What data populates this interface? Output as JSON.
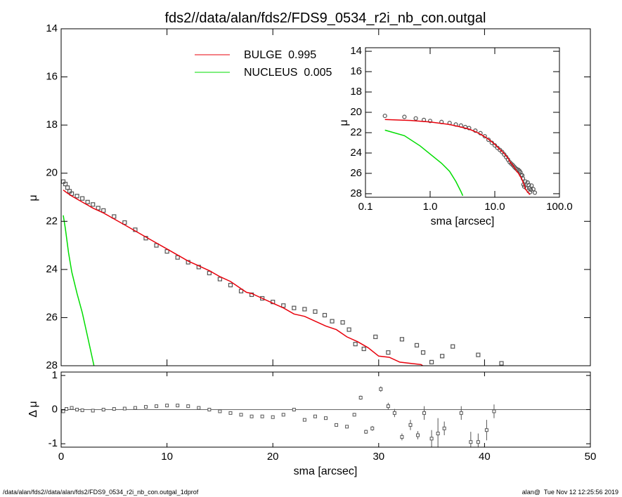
{
  "chart_data": [
    {
      "type": "scatter",
      "title": "fds2//data/alan/fds2/FDS9_0534_r2i_nb_con.outgal",
      "ylabel": "μ",
      "xlim": [
        0,
        50
      ],
      "ylim": [
        28,
        14
      ],
      "xticks": [
        0,
        10,
        20,
        30,
        40,
        50
      ],
      "yticks": [
        14,
        16,
        18,
        20,
        22,
        24,
        26,
        28
      ],
      "legend": "upper center",
      "series": [
        {
          "style": "markers",
          "color": "#555555",
          "x": [
            0.2,
            0.4,
            0.6,
            0.8,
            1.0,
            1.5,
            2,
            2.5,
            3,
            3.5,
            4,
            5,
            6,
            7,
            8,
            9,
            10,
            11,
            12,
            13,
            14,
            15,
            16,
            17,
            18,
            19,
            20,
            21,
            22,
            23,
            24,
            24.9,
            25.6,
            26.6,
            27.2,
            27.8,
            28.6,
            29.7,
            30.9,
            32.2,
            33.6,
            34.2,
            35.0,
            36.0,
            37.0,
            39.4,
            41.6
          ],
          "values": [
            20.35,
            20.45,
            20.6,
            20.75,
            20.85,
            20.95,
            21.05,
            21.2,
            21.3,
            21.45,
            21.55,
            21.8,
            22.05,
            22.35,
            22.7,
            23.0,
            23.25,
            23.5,
            23.7,
            23.9,
            24.15,
            24.4,
            24.65,
            24.9,
            25.05,
            25.2,
            25.35,
            25.5,
            25.6,
            25.65,
            25.75,
            25.9,
            26.15,
            26.2,
            26.5,
            27.1,
            27.3,
            26.8,
            27.45,
            26.9,
            27.15,
            27.45,
            27.85,
            27.6,
            27.2,
            27.55,
            27.9
          ]
        },
        {
          "style": "line",
          "name": "BULGE  0.995",
          "color": "#e8000b",
          "x": [
            0.2,
            0.5,
            1,
            2,
            3,
            4,
            5,
            6,
            7,
            8,
            9,
            10,
            11,
            12,
            13,
            14,
            15,
            16,
            17,
            17.5,
            18,
            19,
            20,
            21,
            22,
            23,
            24,
            25,
            26,
            27,
            28,
            29,
            30,
            31,
            32,
            33,
            34,
            34.5
          ],
          "values": [
            20.7,
            20.8,
            20.95,
            21.2,
            21.45,
            21.65,
            21.9,
            22.15,
            22.4,
            22.65,
            22.9,
            23.15,
            23.4,
            23.65,
            23.85,
            24.05,
            24.3,
            24.5,
            24.8,
            24.95,
            25.0,
            25.2,
            25.4,
            25.6,
            25.85,
            25.95,
            26.15,
            26.35,
            26.5,
            26.8,
            27.0,
            27.25,
            27.6,
            27.65,
            27.85,
            27.9,
            27.95,
            28.1
          ]
        },
        {
          "style": "line",
          "name": "NUCLEUS  0.005",
          "color": "#00dd00",
          "x": [
            0.2,
            0.4,
            0.7,
            1,
            1.5,
            2,
            2.5,
            3,
            3.2
          ],
          "values": [
            21.75,
            22.3,
            23.3,
            24.1,
            25.0,
            25.8,
            26.8,
            27.8,
            28.2
          ]
        }
      ]
    },
    {
      "type": "errorbar",
      "ylabel": "Δ μ",
      "xlabel": "sma [arcsec]",
      "xlim": [
        0,
        50
      ],
      "ylim": [
        -1.1,
        1.1
      ],
      "xticks": [
        0,
        10,
        20,
        30,
        40,
        50
      ],
      "yticks": [
        -1,
        0,
        1
      ],
      "reference_line": 0,
      "color": "#555555",
      "x": [
        0.2,
        0.5,
        1,
        1.5,
        2,
        3,
        4,
        5,
        6,
        7,
        8,
        9,
        10,
        11,
        12,
        13,
        14,
        15,
        16,
        17,
        18,
        19,
        20,
        21,
        22,
        23,
        24,
        25,
        26,
        27,
        27.7,
        28.3,
        28.8,
        29.4,
        30.2,
        30.9,
        31.5,
        32.2,
        33.0,
        33.7,
        34.3,
        35.0,
        35.6,
        36.2,
        37.8,
        38.7,
        39.4,
        40.2,
        40.9
      ],
      "values": [
        -0.05,
        0.02,
        0.05,
        0.0,
        -0.02,
        -0.03,
        0.0,
        0.02,
        0.03,
        0.05,
        0.08,
        0.1,
        0.12,
        0.12,
        0.1,
        0.05,
        0.0,
        -0.05,
        -0.1,
        -0.15,
        -0.2,
        -0.2,
        -0.22,
        -0.15,
        0.0,
        -0.3,
        -0.2,
        -0.25,
        -0.45,
        -0.5,
        -0.15,
        0.35,
        -0.65,
        -0.55,
        0.6,
        0.1,
        -0.1,
        -0.8,
        -0.45,
        -0.75,
        -0.1,
        -0.85,
        -0.7,
        -0.55,
        -0.1,
        -0.95,
        -0.95,
        -0.6,
        -0.05
      ],
      "errors": [
        0,
        0,
        0,
        0,
        0,
        0,
        0,
        0,
        0,
        0,
        0,
        0,
        0,
        0,
        0,
        0,
        0,
        0,
        0,
        0,
        0,
        0,
        0,
        0,
        0,
        0,
        0,
        0,
        0.03,
        0.04,
        0.05,
        0.06,
        0.06,
        0.07,
        0.08,
        0.1,
        0.12,
        0.1,
        0.15,
        0.12,
        0.2,
        0.25,
        0.45,
        0.2,
        0.2,
        0.3,
        0.25,
        0.3,
        0.2
      ]
    },
    {
      "type": "inset",
      "ylabel": "μ",
      "xlabel": "sma [arcsec]",
      "xscale": "log",
      "xlim": [
        0.1,
        100
      ],
      "ylim": [
        28.35,
        13.65
      ],
      "xticks": [
        0.1,
        {
          "value": 1,
          "label": "1.0"
        },
        {
          "value": 10,
          "label": "10.0"
        },
        {
          "value": 100,
          "label": "100.0"
        }
      ],
      "yticks": [
        14,
        16,
        18,
        20,
        22,
        24,
        26,
        28
      ]
    }
  ],
  "footer": {
    "left": "/data/alan/fds2//data/alan/fds2/FDS9_0534_r2i_nb_con.outgal_1dprof",
    "right": "alan@  Tue Nov 12 12:25:56 2019"
  }
}
